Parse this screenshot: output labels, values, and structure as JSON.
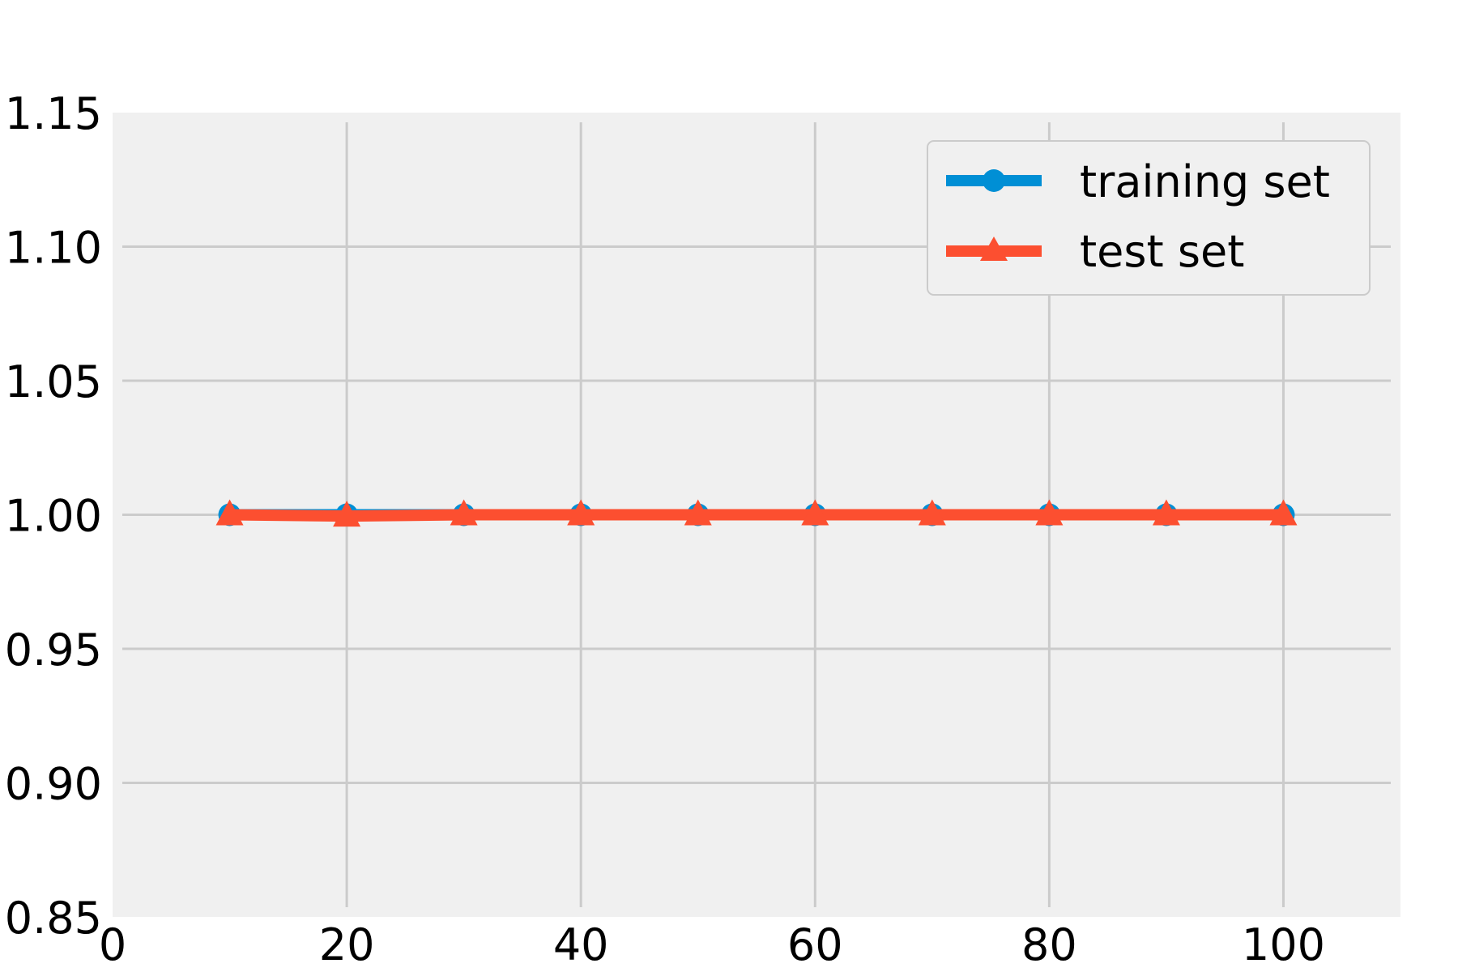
{
  "chart_data": {
    "type": "line",
    "x": [
      10,
      20,
      30,
      40,
      50,
      60,
      70,
      80,
      90,
      100
    ],
    "series": [
      {
        "name": "training set",
        "values": [
          1.0,
          1.0,
          1.0,
          1.0,
          1.0,
          1.0,
          1.0,
          1.0,
          1.0,
          1.0
        ],
        "color": "#008fd5",
        "marker": "circle"
      },
      {
        "name": "test set",
        "values": [
          1.0,
          0.9995,
          1.0,
          1.0,
          1.0,
          1.0,
          1.0,
          1.0,
          1.0,
          1.0
        ],
        "color": "#fc4f30",
        "marker": "triangle"
      }
    ],
    "xlim": [
      0,
      110
    ],
    "ylim": [
      0.85,
      1.15
    ],
    "x_ticks": [
      0,
      20,
      40,
      60,
      80,
      100
    ],
    "x_tick_labels": [
      "0",
      "20",
      "40",
      "60",
      "80",
      "100"
    ],
    "y_ticks": [
      0.85,
      0.9,
      0.95,
      1.0,
      1.05,
      1.1,
      1.15
    ],
    "y_tick_labels": [
      "0.85",
      "0.90",
      "0.95",
      "1.00",
      "1.05",
      "1.10",
      "1.15"
    ],
    "grid": true,
    "legend": "top-right",
    "background": "#f0f0f0",
    "grid_color": "#cbcbcb"
  }
}
